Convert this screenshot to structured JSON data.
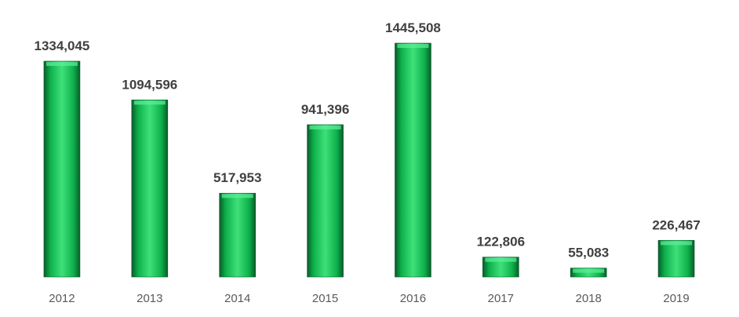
{
  "chart_data": {
    "type": "bar",
    "categories": [
      "2012",
      "2013",
      "2014",
      "2015",
      "2016",
      "2017",
      "2018",
      "2019"
    ],
    "values": [
      1334.045,
      1094.596,
      517.953,
      941.396,
      1445.508,
      122.806,
      55.083,
      226.467
    ],
    "value_labels": [
      "1334,045",
      "1094,596",
      "517,953",
      "941,396",
      "1445,508",
      "122,806",
      "55,083",
      "226,467"
    ],
    "color": "#0db14b"
  }
}
